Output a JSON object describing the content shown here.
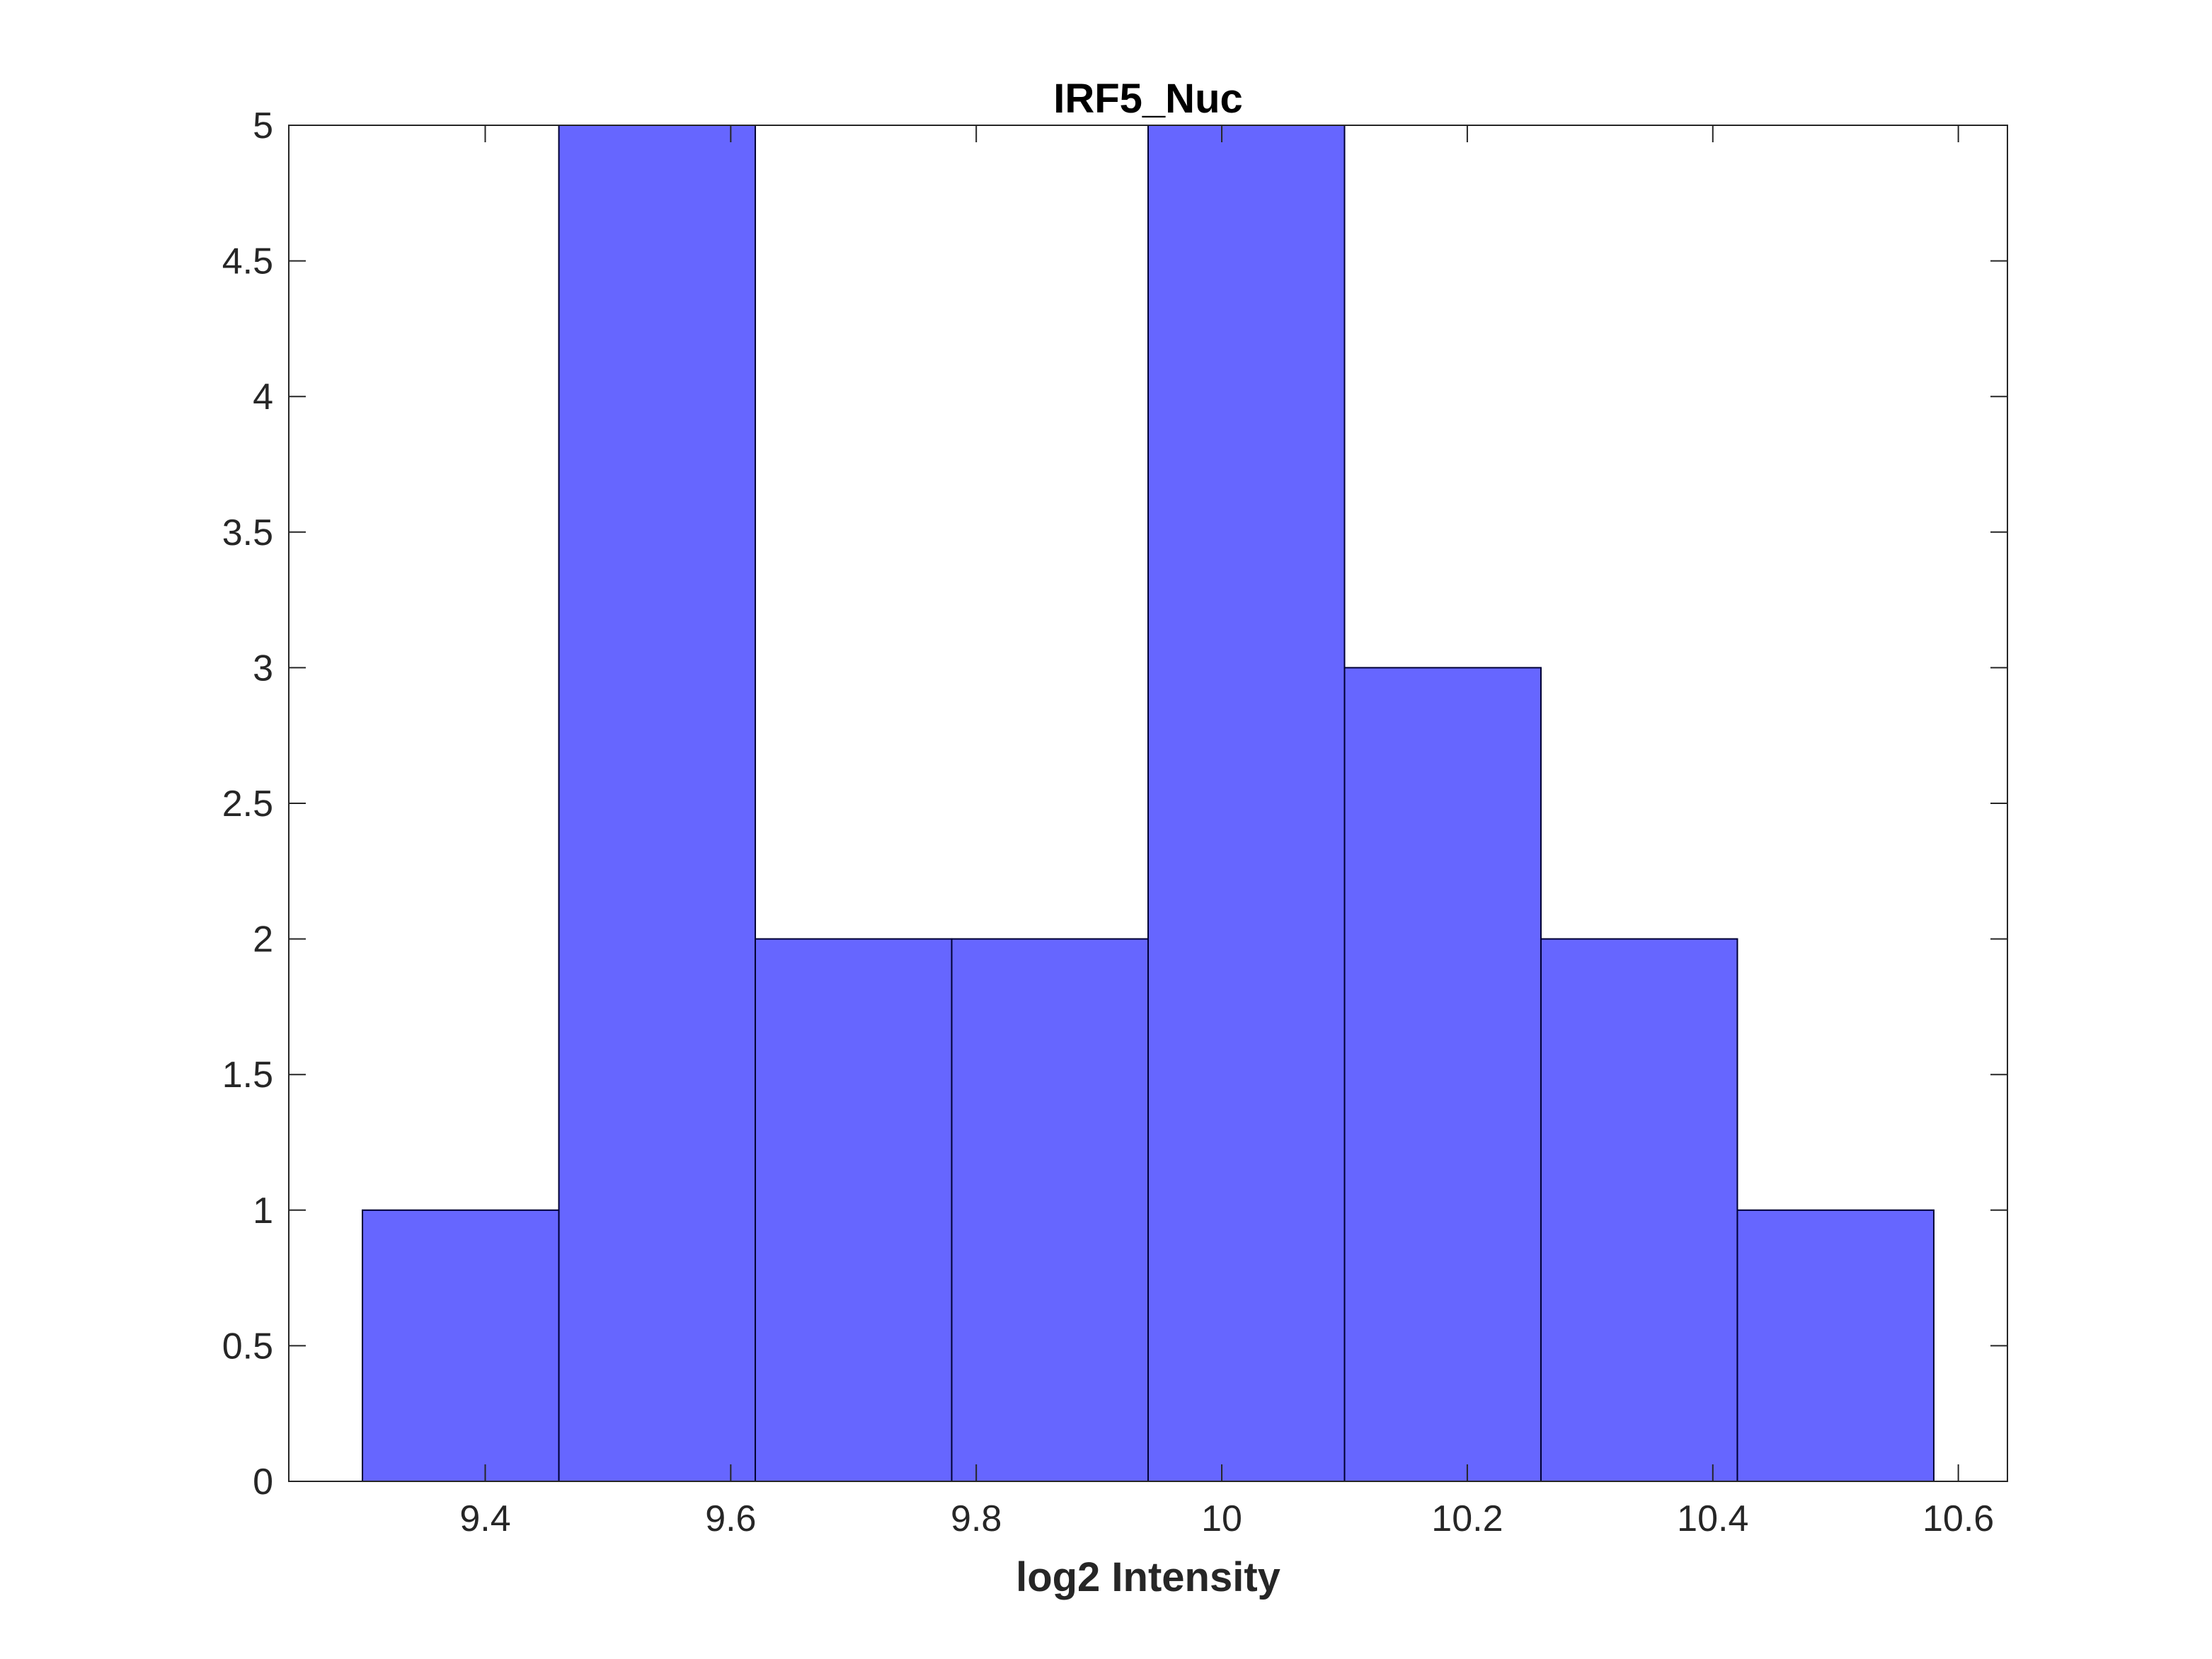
{
  "colors": {
    "bar_fill": "#6666ff",
    "bar_edge": "#000033",
    "axis": "#262626",
    "background": "#ffffff"
  },
  "chart_data": {
    "type": "bar",
    "subtype": "histogram",
    "title": "IRF5_Nuc",
    "xlabel": "log2 Intensity",
    "ylabel": "",
    "bin_edges": [
      9.3,
      9.46,
      9.62,
      9.78,
      9.94,
      10.1,
      10.26,
      10.42,
      10.58
    ],
    "values": [
      1,
      5,
      2,
      2,
      5,
      3,
      2,
      1
    ],
    "xlim": [
      9.24,
      10.64
    ],
    "ylim": [
      0,
      5
    ],
    "xticks": [
      9.4,
      9.6,
      9.8,
      10,
      10.2,
      10.4,
      10.6
    ],
    "xtick_labels": [
      "9.4",
      "9.6",
      "9.8",
      "10",
      "10.2",
      "10.4",
      "10.6"
    ],
    "yticks": [
      0,
      0.5,
      1,
      1.5,
      2,
      2.5,
      3,
      3.5,
      4,
      4.5,
      5
    ],
    "ytick_labels": [
      "0",
      "0.5",
      "1",
      "1.5",
      "2",
      "2.5",
      "3",
      "3.5",
      "4",
      "4.5",
      "5"
    ],
    "grid": false,
    "box": true
  }
}
